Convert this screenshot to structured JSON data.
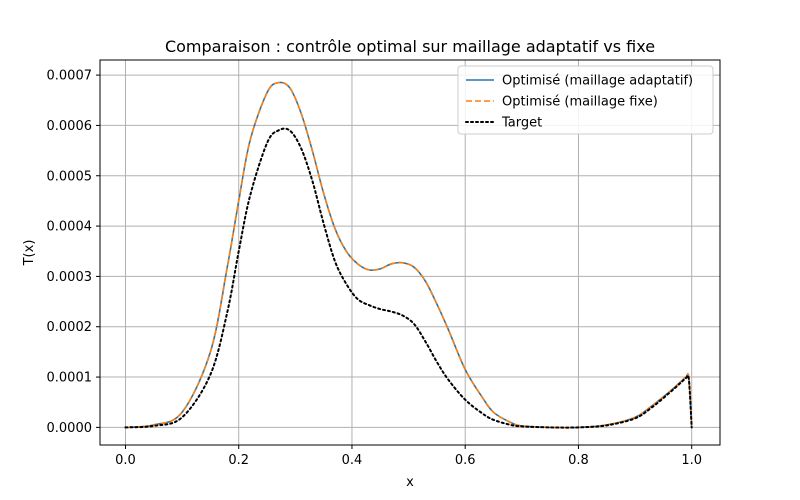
{
  "chart_data": {
    "type": "line",
    "title": "Comparaison : contrôle optimal sur maillage adaptatif vs fixe",
    "xlabel": "x",
    "ylabel": "T(x)",
    "xlim": [
      -0.045,
      1.05
    ],
    "ylim": [
      -3.5e-05,
      0.00073
    ],
    "xticks": [
      0.0,
      0.2,
      0.4,
      0.6,
      0.8,
      1.0
    ],
    "xtick_labels": [
      "0.0",
      "0.2",
      "0.4",
      "0.6",
      "0.8",
      "1.0"
    ],
    "yticks": [
      0.0,
      0.0001,
      0.0002,
      0.0003,
      0.0004,
      0.0005,
      0.0006,
      0.0007
    ],
    "ytick_labels": [
      "0.0000",
      "0.0001",
      "0.0002",
      "0.0003",
      "0.0004",
      "0.0005",
      "0.0006",
      "0.0007"
    ],
    "grid": true,
    "legend_position": "top-right",
    "series": [
      {
        "name": "Optimisé (maillage adaptatif)",
        "color": "#1f77b4",
        "style": "solid",
        "x": [
          0.0,
          0.05,
          0.1,
          0.15,
          0.18,
          0.2,
          0.22,
          0.25,
          0.27,
          0.29,
          0.31,
          0.33,
          0.35,
          0.37,
          0.39,
          0.41,
          0.43,
          0.45,
          0.47,
          0.49,
          0.51,
          0.53,
          0.55,
          0.57,
          0.6,
          0.63,
          0.65,
          0.68,
          0.7,
          0.75,
          0.8,
          0.85,
          0.9,
          0.93,
          0.96,
          0.98,
          0.99,
          0.995,
          1.0
        ],
        "y": [
          0.0,
          5e-06,
          3e-05,
          0.00015,
          0.00032,
          0.00045,
          0.00057,
          0.000665,
          0.000685,
          0.000675,
          0.000625,
          0.00055,
          0.000465,
          0.000395,
          0.00035,
          0.000325,
          0.000313,
          0.000315,
          0.000325,
          0.000327,
          0.000318,
          0.00029,
          0.000245,
          0.000195,
          0.000115,
          6e-05,
          3e-05,
          1e-05,
          3e-06,
          0.0,
          0.0,
          5e-06,
          2e-05,
          4.3e-05,
          7e-05,
          9e-05,
          0.0001,
          9.8e-05,
          0.0
        ]
      },
      {
        "name": "Optimisé (maillage fixe)",
        "color": "#ff7f0e",
        "style": "dashed",
        "x": [
          0.0,
          0.05,
          0.1,
          0.15,
          0.18,
          0.2,
          0.22,
          0.25,
          0.27,
          0.29,
          0.31,
          0.33,
          0.35,
          0.37,
          0.39,
          0.41,
          0.43,
          0.45,
          0.47,
          0.49,
          0.51,
          0.53,
          0.55,
          0.57,
          0.6,
          0.63,
          0.65,
          0.68,
          0.7,
          0.75,
          0.8,
          0.85,
          0.9,
          0.93,
          0.96,
          0.98,
          0.99,
          0.995,
          1.0
        ],
        "y": [
          0.0,
          5e-06,
          3e-05,
          0.00015,
          0.00032,
          0.00045,
          0.00057,
          0.000665,
          0.000685,
          0.000675,
          0.000625,
          0.00055,
          0.000465,
          0.000395,
          0.00035,
          0.000325,
          0.000313,
          0.000315,
          0.000325,
          0.000327,
          0.000318,
          0.00029,
          0.000245,
          0.000195,
          0.000115,
          6e-05,
          3e-05,
          1e-05,
          3e-06,
          0.0,
          0.0,
          5e-06,
          2e-05,
          4.3e-05,
          7e-05,
          9e-05,
          0.0001,
          9.8e-05,
          0.0
        ]
      },
      {
        "name": "Target",
        "color": "#000000",
        "style": "dotted",
        "x": [
          0.0,
          0.05,
          0.1,
          0.15,
          0.18,
          0.2,
          0.22,
          0.25,
          0.27,
          0.29,
          0.31,
          0.33,
          0.35,
          0.37,
          0.39,
          0.41,
          0.43,
          0.45,
          0.47,
          0.49,
          0.51,
          0.53,
          0.55,
          0.57,
          0.6,
          0.63,
          0.65,
          0.68,
          0.7,
          0.75,
          0.8,
          0.85,
          0.9,
          0.93,
          0.96,
          0.98,
          0.99,
          0.995,
          1.0
        ],
        "y": [
          0.0,
          3e-06,
          2e-05,
          0.000105,
          0.00023,
          0.00035,
          0.00046,
          0.000565,
          0.00059,
          0.00059,
          0.000555,
          0.00049,
          0.000405,
          0.00033,
          0.000285,
          0.000255,
          0.000243,
          0.000235,
          0.00023,
          0.000222,
          0.000205,
          0.00017,
          0.00013,
          9.5e-05,
          5.5e-05,
          2.8e-05,
          1.5e-05,
          5e-06,
          2e-06,
          0.0,
          0.0,
          4e-06,
          1.8e-05,
          4e-05,
          6.8e-05,
          8.8e-05,
          9.8e-05,
          9.5e-05,
          0.0
        ]
      }
    ]
  }
}
